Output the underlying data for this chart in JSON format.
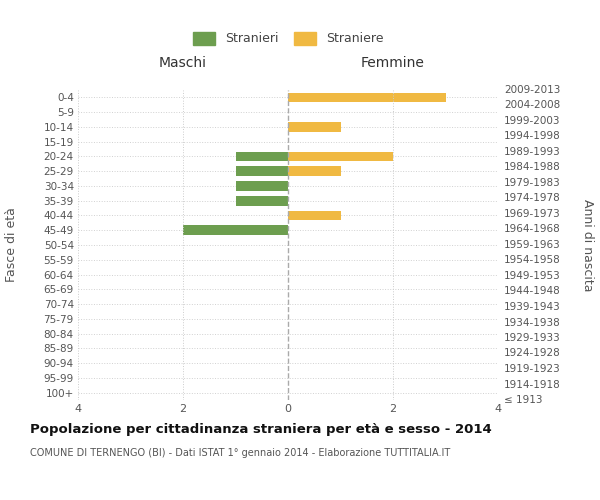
{
  "age_groups": [
    "100+",
    "95-99",
    "90-94",
    "85-89",
    "80-84",
    "75-79",
    "70-74",
    "65-69",
    "60-64",
    "55-59",
    "50-54",
    "45-49",
    "40-44",
    "35-39",
    "30-34",
    "25-29",
    "20-24",
    "15-19",
    "10-14",
    "5-9",
    "0-4"
  ],
  "birth_years": [
    "≤ 1913",
    "1914-1918",
    "1919-1923",
    "1924-1928",
    "1929-1933",
    "1934-1938",
    "1939-1943",
    "1944-1948",
    "1949-1953",
    "1954-1958",
    "1959-1963",
    "1964-1968",
    "1969-1973",
    "1974-1978",
    "1979-1983",
    "1984-1988",
    "1989-1993",
    "1994-1998",
    "1999-2003",
    "2004-2008",
    "2009-2013"
  ],
  "stranieri": [
    0,
    0,
    0,
    0,
    0,
    0,
    0,
    0,
    0,
    0,
    0,
    2,
    0,
    1,
    1,
    1,
    1,
    0,
    0,
    0,
    0
  ],
  "straniere": [
    0,
    0,
    0,
    0,
    0,
    0,
    0,
    0,
    0,
    0,
    0,
    0,
    1,
    0,
    0,
    1,
    2,
    0,
    1,
    0,
    3
  ],
  "color_stranieri": "#6d9e4f",
  "color_straniere": "#f0b942",
  "xlim": 4,
  "title": "Popolazione per cittadinanza straniera per età e sesso - 2014",
  "subtitle": "COMUNE DI TERNENGO (BI) - Dati ISTAT 1° gennaio 2014 - Elaborazione TUTTITALIA.IT",
  "ylabel_left": "Fasce di età",
  "ylabel_right": "Anni di nascita",
  "xlabel_maschi": "Maschi",
  "xlabel_femmine": "Femmine",
  "legend_stranieri": "Stranieri",
  "legend_straniere": "Straniere",
  "bg_color": "#ffffff",
  "grid_color": "#cccccc"
}
